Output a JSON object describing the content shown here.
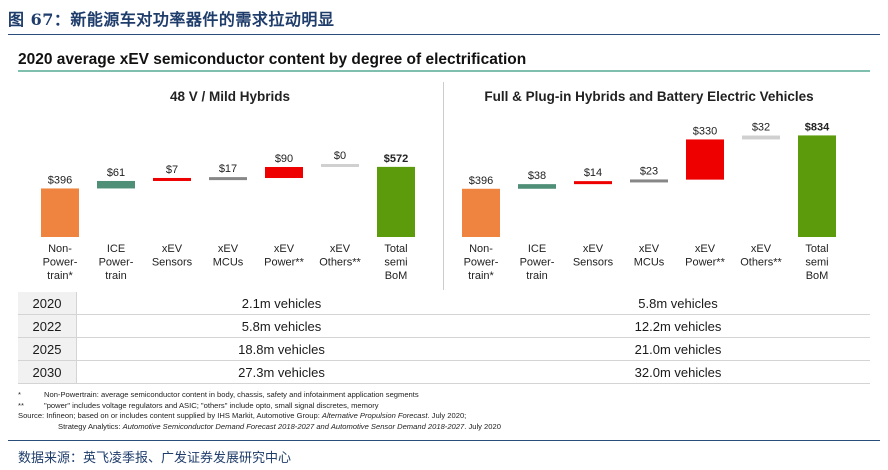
{
  "figure_title": "图 67：新能源车对功率器件的需求拉动明显",
  "subtitle": "2020 average xEV semiconductor content by degree of electrification",
  "colors": {
    "orange": "#ef8441",
    "teal": "#4f8f77",
    "red": "#ee0000",
    "gray": "#878787",
    "lightgray": "#d0d0d0",
    "green": "#5c9c0c"
  },
  "chart_data": [
    {
      "type": "bar",
      "subtype": "waterfall",
      "title": "48 V / Mild Hybrids",
      "categories": [
        "Non-\nPower-\ntrain*",
        "ICE\nPower-\ntrain",
        "xEV\nSensors",
        "xEV\nMCUs",
        "xEV\nPower**",
        "xEV\nOthers**",
        "Total\nsemi\nBoM"
      ],
      "values": [
        396,
        61,
        7,
        17,
        90,
        0,
        572
      ],
      "labels": [
        "$396",
        "$61",
        "$7",
        "$17",
        "$90",
        "$0",
        "$572"
      ],
      "bar_colors": [
        "orange",
        "teal",
        "red",
        "gray",
        "red",
        "lightgray",
        "green"
      ],
      "ylim": [
        0,
        572
      ]
    },
    {
      "type": "bar",
      "subtype": "waterfall",
      "title": "Full & Plug-in Hybrids and Battery Electric Vehicles",
      "categories": [
        "Non-\nPower-\ntrain*",
        "ICE\nPower-\ntrain",
        "xEV\nSensors",
        "xEV\nMCUs",
        "xEV\nPower**",
        "xEV\nOthers**",
        "Total\nsemi\nBoM"
      ],
      "values": [
        396,
        38,
        14,
        23,
        330,
        32,
        834
      ],
      "labels": [
        "$396",
        "$38",
        "$14",
        "$23",
        "$330",
        "$32",
        "$834"
      ],
      "bar_colors": [
        "orange",
        "teal",
        "red",
        "gray",
        "red",
        "lightgray",
        "green"
      ],
      "ylim": [
        0,
        834
      ]
    }
  ],
  "table": {
    "rows": [
      {
        "year": "2020",
        "mild": "2.1m vehicles",
        "full": "5.8m vehicles"
      },
      {
        "year": "2022",
        "mild": "5.8m vehicles",
        "full": "12.2m vehicles"
      },
      {
        "year": "2025",
        "mild": "18.8m vehicles",
        "full": "21.0m vehicles"
      },
      {
        "year": "2030",
        "mild": "27.3m vehicles",
        "full": "32.0m vehicles"
      }
    ]
  },
  "notes": {
    "n1_key": "*",
    "n1": "Non-Powertrain: average semiconductor content in body, chassis, safety and infotainment application segments",
    "n2_key": "**",
    "n2": "\"power\" includes voltage regulators and ASIC; \"others\" include opto, small signal discretes, memory",
    "src_a": "Source: Infineon; based on or includes content supplied by IHS Markit, Automotive Group: ",
    "src_a_it": "Alternative Propulsion Forecast",
    "src_a_end": ". July 2020;",
    "src_b": "Strategy Analytics: ",
    "src_b_it": "Automotive Semiconductor Demand Forecast 2018-2027 and Automotive Sensor Demand 2018-2027",
    "src_b_end": ". July 2020"
  },
  "source_line": "数据来源：英飞凌季报、广发证券发展研究中心"
}
